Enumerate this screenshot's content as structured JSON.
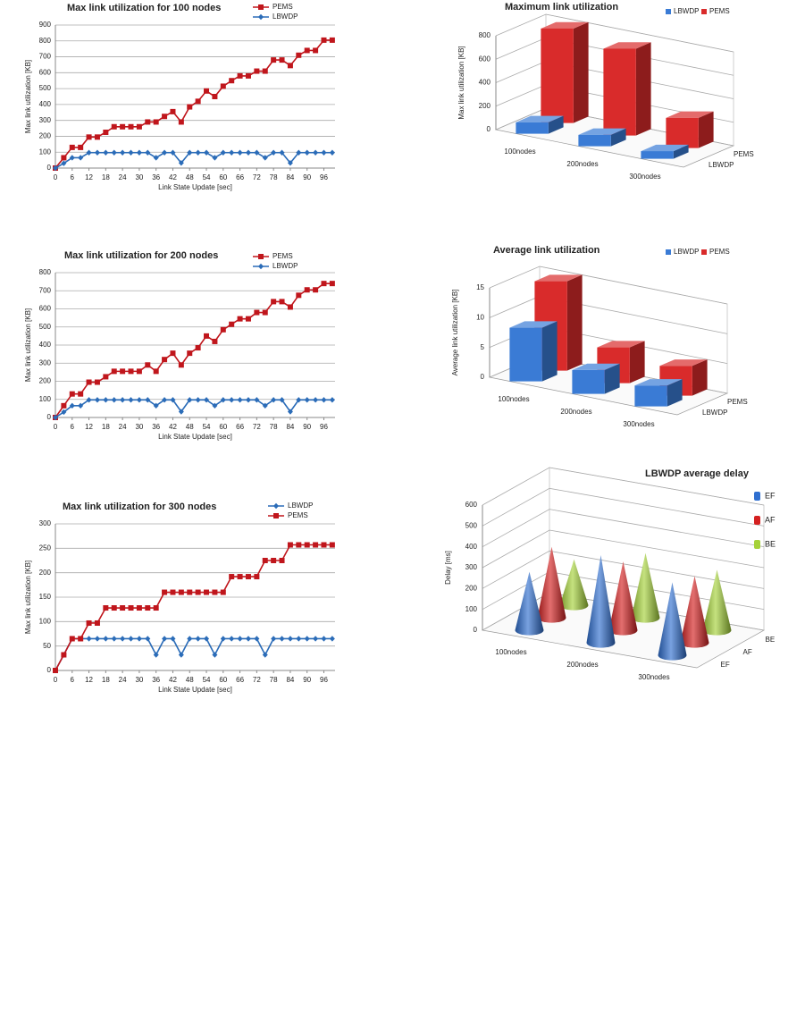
{
  "chart_data": [
    {
      "type": "line",
      "title": "Max link utilization for 100 nodes",
      "x_label": "Link State Update [sec]",
      "y_label": "Max link utilization [KB]",
      "x": [
        0,
        3,
        6,
        9,
        12,
        15,
        18,
        21,
        24,
        27,
        30,
        33,
        36,
        39,
        42,
        45,
        48,
        51,
        54,
        57,
        60,
        63,
        66,
        69,
        72,
        75,
        78,
        81,
        84,
        87,
        90,
        93,
        96,
        99
      ],
      "xlim": [
        0,
        100
      ],
      "xticks": [
        0,
        6,
        12,
        18,
        24,
        30,
        36,
        42,
        48,
        54,
        60,
        66,
        72,
        78,
        84,
        90,
        96
      ],
      "ylim": [
        0,
        900
      ],
      "yticks": [
        0,
        100,
        200,
        300,
        400,
        500,
        600,
        700,
        800,
        900
      ],
      "grid": true,
      "series": [
        {
          "name": "PEMS",
          "color": "#c0161c",
          "marker": "square",
          "values": [
            0,
            65,
            130,
            130,
            195,
            195,
            225,
            260,
            260,
            260,
            260,
            290,
            290,
            325,
            355,
            290,
            385,
            420,
            485,
            450,
            515,
            550,
            580,
            580,
            610,
            610,
            680,
            680,
            645,
            710,
            740,
            740,
            805,
            805
          ]
        },
        {
          "name": "LBWDP",
          "color": "#2b6cb8",
          "marker": "diamond",
          "values": [
            0,
            30,
            65,
            65,
            97,
            97,
            97,
            97,
            97,
            97,
            97,
            97,
            65,
            97,
            97,
            32,
            97,
            97,
            97,
            65,
            97,
            97,
            97,
            97,
            97,
            65,
            97,
            97,
            32,
            97,
            97,
            97,
            97,
            97
          ]
        }
      ]
    },
    {
      "type": "line",
      "title": "Max link utilization for 200 nodes",
      "x_label": "Link State Update [sec]",
      "y_label": "Max link utilization [KB]",
      "x": [
        0,
        3,
        6,
        9,
        12,
        15,
        18,
        21,
        24,
        27,
        30,
        33,
        36,
        39,
        42,
        45,
        48,
        51,
        54,
        57,
        60,
        63,
        66,
        69,
        72,
        75,
        78,
        81,
        84,
        87,
        90,
        93,
        96,
        99
      ],
      "xlim": [
        0,
        100
      ],
      "xticks": [
        0,
        6,
        12,
        18,
        24,
        30,
        36,
        42,
        48,
        54,
        60,
        66,
        72,
        78,
        84,
        90,
        96
      ],
      "ylim": [
        0,
        800
      ],
      "yticks": [
        0,
        100,
        200,
        300,
        400,
        500,
        600,
        700,
        800
      ],
      "grid": true,
      "series": [
        {
          "name": "PEMS",
          "color": "#c0161c",
          "marker": "square",
          "values": [
            0,
            65,
            130,
            130,
            195,
            195,
            225,
            255,
            255,
            255,
            255,
            290,
            255,
            320,
            355,
            290,
            355,
            385,
            450,
            420,
            485,
            515,
            545,
            545,
            580,
            580,
            640,
            640,
            610,
            675,
            705,
            705,
            740,
            740
          ]
        },
        {
          "name": "LBWDP",
          "color": "#2b6cb8",
          "marker": "diamond",
          "values": [
            0,
            30,
            65,
            65,
            97,
            97,
            97,
            97,
            97,
            97,
            97,
            97,
            65,
            97,
            97,
            32,
            97,
            97,
            97,
            65,
            97,
            97,
            97,
            97,
            97,
            65,
            97,
            97,
            32,
            97,
            97,
            97,
            97,
            97
          ]
        }
      ]
    },
    {
      "type": "line",
      "title": "Max link utilization for 300 nodes",
      "x_label": "Link State Update [sec]",
      "y_label": "Max link utilization [KB]",
      "x": [
        0,
        3,
        6,
        9,
        12,
        15,
        18,
        21,
        24,
        27,
        30,
        33,
        36,
        39,
        42,
        45,
        48,
        51,
        54,
        57,
        60,
        63,
        66,
        69,
        72,
        75,
        78,
        81,
        84,
        87,
        90,
        93,
        96,
        99
      ],
      "xlim": [
        0,
        100
      ],
      "xticks": [
        0,
        6,
        12,
        18,
        24,
        30,
        36,
        42,
        48,
        54,
        60,
        66,
        72,
        78,
        84,
        90,
        96
      ],
      "ylim": [
        0,
        300
      ],
      "yticks": [
        0,
        50,
        100,
        150,
        200,
        250,
        300
      ],
      "grid": true,
      "series": [
        {
          "name": "LBWDP",
          "color": "#2b6cb8",
          "marker": "diamond",
          "values": [
            0,
            32,
            65,
            65,
            65,
            65,
            65,
            65,
            65,
            65,
            65,
            65,
            32,
            65,
            65,
            32,
            65,
            65,
            65,
            32,
            65,
            65,
            65,
            65,
            65,
            32,
            65,
            65,
            65,
            65,
            65,
            65,
            65,
            65
          ]
        },
        {
          "name": "PEMS",
          "color": "#c0161c",
          "marker": "square",
          "values": [
            0,
            32,
            65,
            65,
            97,
            97,
            128,
            128,
            128,
            128,
            128,
            128,
            128,
            160,
            160,
            160,
            160,
            160,
            160,
            160,
            160,
            192,
            192,
            192,
            192,
            225,
            225,
            225,
            257,
            257,
            257,
            257,
            257,
            257
          ]
        }
      ]
    },
    {
      "type": "bar3d",
      "title": "Maximum link utilization",
      "y_label": "Max link utilization [KB]",
      "categories": [
        "100nodes",
        "200nodes",
        "300nodes"
      ],
      "ylim": [
        0,
        800
      ],
      "yticks": [
        0,
        200,
        400,
        600,
        800
      ],
      "grid": true,
      "legend": "top-right",
      "series": [
        {
          "name": "LBWDP",
          "color": "#3a7bd5",
          "values": [
            97,
            97,
            65
          ]
        },
        {
          "name": "PEMS",
          "color": "#d92b2b",
          "values": [
            805,
            740,
            257
          ]
        }
      ]
    },
    {
      "type": "bar3d",
      "title": "Average link utilization",
      "y_label": "Average link utilization [KB]",
      "categories": [
        "100nodes",
        "200nodes",
        "300nodes"
      ],
      "ylim": [
        0,
        15
      ],
      "yticks": [
        0,
        5,
        10,
        15
      ],
      "grid": true,
      "legend": "top-right",
      "series": [
        {
          "name": "LBWDP",
          "color": "#3a7bd5",
          "values": [
            9,
            4,
            3.5
          ]
        },
        {
          "name": "PEMS",
          "color": "#d92b2b",
          "values": [
            15,
            6,
            5
          ]
        }
      ]
    },
    {
      "type": "cone",
      "title": "LBWDP average delay",
      "y_label": "Delay [ms]",
      "categories": [
        "100nodes",
        "200nodes",
        "300nodes"
      ],
      "ylim": [
        0,
        600
      ],
      "yticks": [
        0,
        100,
        200,
        300,
        400,
        500,
        600
      ],
      "grid": true,
      "legend": "right",
      "series": [
        {
          "name": "EF",
          "color": "#2f6fd0",
          "values": [
            280,
            420,
            350
          ]
        },
        {
          "name": "AF",
          "color": "#d42020",
          "values": [
            340,
            330,
            320
          ]
        },
        {
          "name": "BE",
          "color": "#a6d23a",
          "values": [
            220,
            310,
            290
          ]
        }
      ]
    }
  ]
}
